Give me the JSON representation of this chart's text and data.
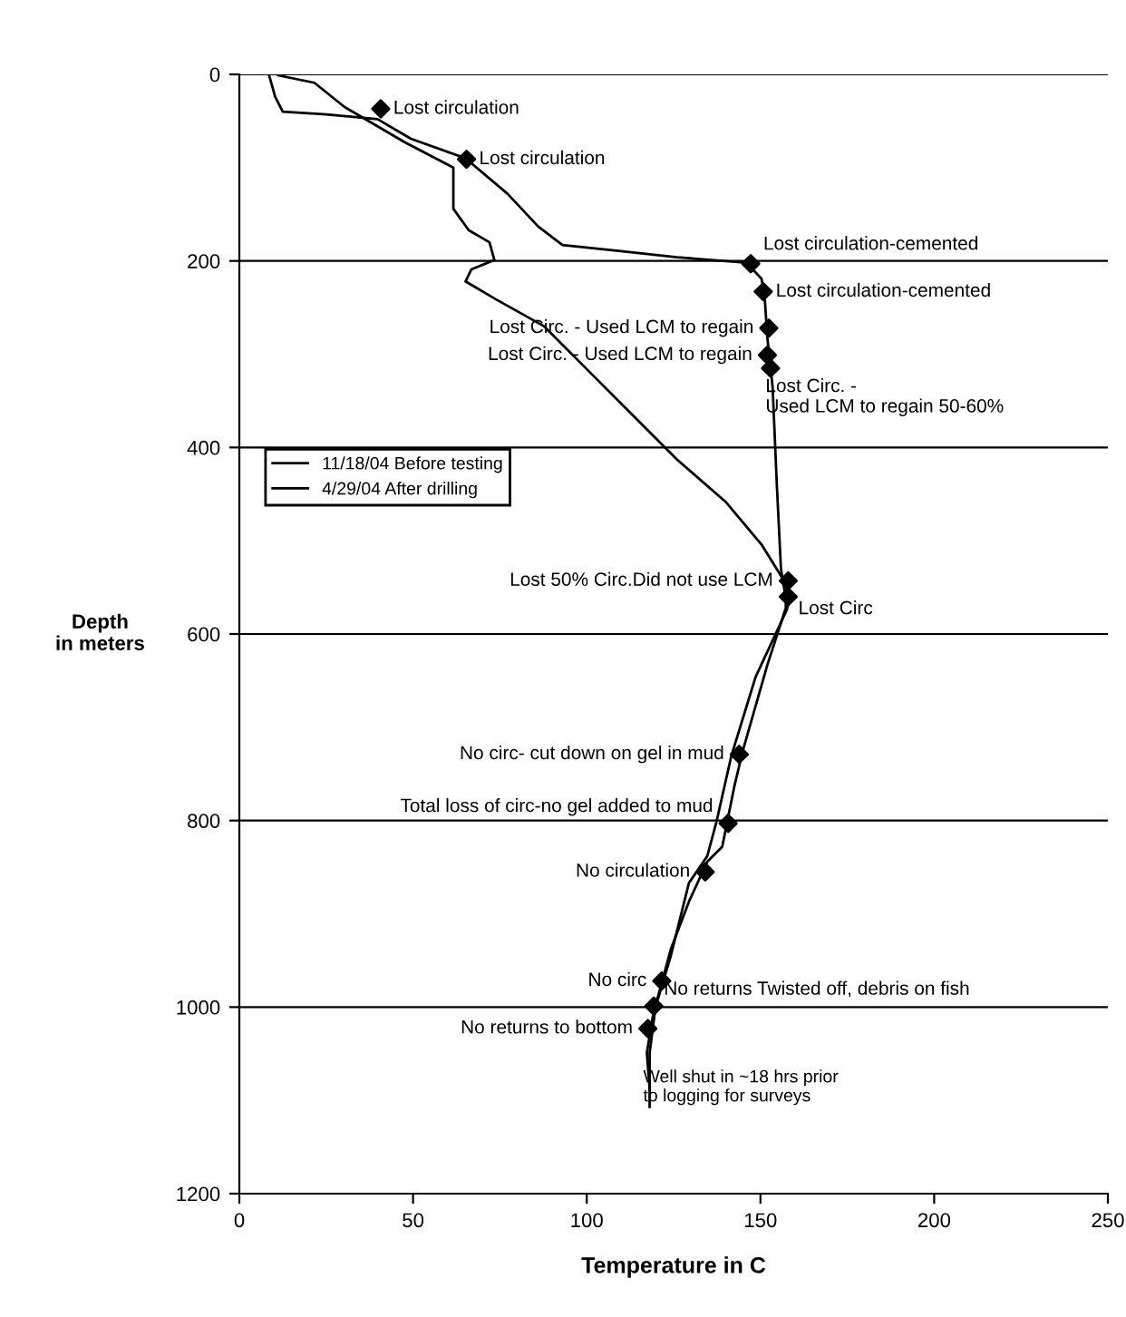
{
  "chart_data": {
    "type": "line",
    "xlabel": "Temperature in C",
    "ylabel": "Depth\nin meters",
    "xlim": [
      0,
      250
    ],
    "xticks": [
      0,
      50,
      100,
      150,
      200,
      250
    ],
    "ylim": [
      1200,
      0
    ],
    "yticks": [
      0,
      200,
      400,
      600,
      800,
      1000,
      1200
    ],
    "grid": "y",
    "legend": "left",
    "marker": "none",
    "line_style": "solid",
    "series": [
      {
        "name": "11/18/04 Before testing",
        "color": "#000000",
        "x": [
          8.5,
          10.3,
          12.5,
          25,
          39.8,
          49.4,
          65.1,
          77.2,
          86,
          93,
          108.6,
          126,
          146,
          150.3,
          151.2,
          152,
          153.5,
          154.7,
          155.9,
          157.3,
          157.3,
          152,
          145,
          142.5,
          139,
          134.7,
          129.4,
          124.2,
          119.9,
          118.1,
          118.1
        ],
        "values": [
          0,
          24,
          40,
          43,
          48,
          69,
          90,
          128,
          163,
          183,
          189,
          196,
          202,
          219,
          238,
          283,
          335,
          439,
          530,
          562,
          572,
          633,
          724,
          763,
          828,
          844,
          887,
          938,
          997,
          1049,
          1107
        ]
      },
      {
        "name": "4/29/04 After drilling",
        "color": "#000000",
        "x": [
          11.1,
          21.6,
          30.3,
          47.7,
          61.6,
          61.6,
          66,
          72,
          73.4,
          66.8,
          65.1,
          73.8,
          87.7,
          101.6,
          115.5,
          126,
          139.9,
          150.3,
          157.3,
          158.2,
          157.6,
          148.6,
          141.6,
          137.3,
          134.7,
          129.4,
          124.2,
          119,
          117.3,
          118.1
        ],
        "values": [
          1,
          9,
          35,
          73,
          100,
          144,
          167,
          180,
          199,
          209,
          222,
          241,
          270,
          322,
          374,
          413,
          458,
          504,
          546,
          565,
          574,
          646,
          731,
          802,
          838,
          867,
          945,
          1010,
          1049,
          1088
        ]
      },
      {
        "type": "scatter",
        "color": "#000000",
        "marker": "diamond",
        "x": [
          40.7,
          65.4,
          147.2,
          150.8,
          152.4,
          152,
          152.9,
          158,
          158,
          143.9,
          140.7,
          134.1,
          121.6,
          119.3,
          117.6
        ],
        "values": [
          37,
          91,
          203,
          233,
          272,
          301,
          315,
          543,
          560,
          729,
          803,
          855,
          972,
          999,
          1023
        ]
      }
    ],
    "annotations": [
      {
        "text": "Lost circulation",
        "x": 40.7,
        "y": 37
      },
      {
        "text": "Lost circulation",
        "x": 65.4,
        "y": 91
      },
      {
        "text": "Lost circulation-cemented",
        "x": 147.2,
        "y": 203
      },
      {
        "text": "Lost circulation-cemented",
        "x": 150.8,
        "y": 233
      },
      {
        "text": "Lost Circ. - Used LCM to regain",
        "x": 152.4,
        "y": 272
      },
      {
        "text": "Lost Circ. - Used LCM to regain",
        "x": 152,
        "y": 301
      },
      {
        "text": "Lost Circ. -\nUsed LCM to regain 50-60%",
        "x": 152.9,
        "y": 315
      },
      {
        "text": "Lost 50% Circ.Did not use LCM",
        "x": 158,
        "y": 543
      },
      {
        "text": "Lost Circ",
        "x": 158,
        "y": 560
      },
      {
        "text": "No circ- cut down on gel in mud",
        "x": 143.9,
        "y": 729
      },
      {
        "text": "Total loss of circ-no gel added to mud",
        "x": 140.7,
        "y": 803
      },
      {
        "text": "No circulation",
        "x": 134.1,
        "y": 855
      },
      {
        "text": "No circ",
        "x": 121.6,
        "y": 972
      },
      {
        "text": "No returns Twisted off, debris on fish",
        "x": 119.3,
        "y": 999
      },
      {
        "text": "No returns to bottom",
        "x": 117.6,
        "y": 1023
      },
      "Well shut in ~18 hrs prior\nto logging for surveys"
    ]
  }
}
